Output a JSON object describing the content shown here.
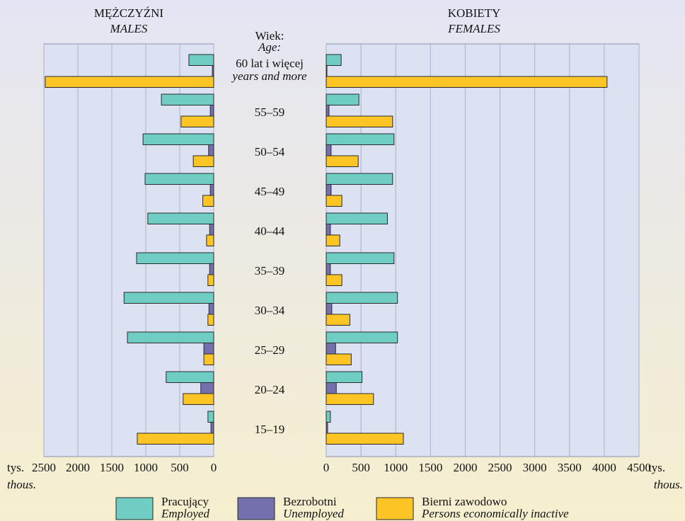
{
  "chart_data": {
    "type": "pyramid",
    "age_label": "Wiek:",
    "age_label_en": "Age:",
    "categories": [
      "60 lat i więcej",
      "55–59",
      "50–54",
      "45–49",
      "40–44",
      "35–39",
      "30–34",
      "25–29",
      "20–24",
      "15–19"
    ],
    "categories_en": [
      "years and more",
      null,
      null,
      null,
      null,
      null,
      null,
      null,
      null,
      null
    ],
    "panels": [
      {
        "title": "MĘŻCZYŹNI",
        "subtitle": "MALES",
        "unit": "tys.",
        "unit_en": "thous.",
        "reversed": true,
        "xlim": [
          0,
          2500
        ],
        "xticks": [
          0,
          500,
          1000,
          1500,
          2000,
          2500
        ]
      },
      {
        "title": "KOBIETY",
        "subtitle": "FEMALES",
        "unit": "tys.",
        "unit_en": "thous.",
        "reversed": false,
        "xlim": [
          0,
          4500
        ],
        "xticks": [
          0,
          500,
          1000,
          1500,
          2000,
          2500,
          3000,
          3500,
          4000,
          4500
        ]
      }
    ],
    "series": [
      {
        "name": "Pracujący",
        "name_en": "Employed",
        "color": "#6fcdc4",
        "values": [
          [
            365,
            770,
            1040,
            1010,
            970,
            1135,
            1320,
            1270,
            700,
            85
          ],
          [
            215,
            470,
            975,
            955,
            880,
            975,
            1025,
            1025,
            515,
            60
          ]
        ]
      },
      {
        "name": "Bezrobotni",
        "name_en": "Unemployed",
        "color": "#7470ae",
        "values": [
          [
            20,
            50,
            75,
            50,
            60,
            60,
            70,
            145,
            190,
            40
          ],
          [
            10,
            40,
            70,
            70,
            60,
            60,
            80,
            135,
            145,
            20
          ]
        ]
      },
      {
        "name": "Bierni zawodowo",
        "name_en": "Persons economically inactive",
        "color": "#fcc526",
        "values": [
          [
            2480,
            480,
            300,
            160,
            105,
            85,
            85,
            145,
            450,
            1125
          ],
          [
            4040,
            955,
            460,
            225,
            195,
            225,
            340,
            360,
            680,
            1110
          ]
        ]
      }
    ],
    "grid": true
  }
}
